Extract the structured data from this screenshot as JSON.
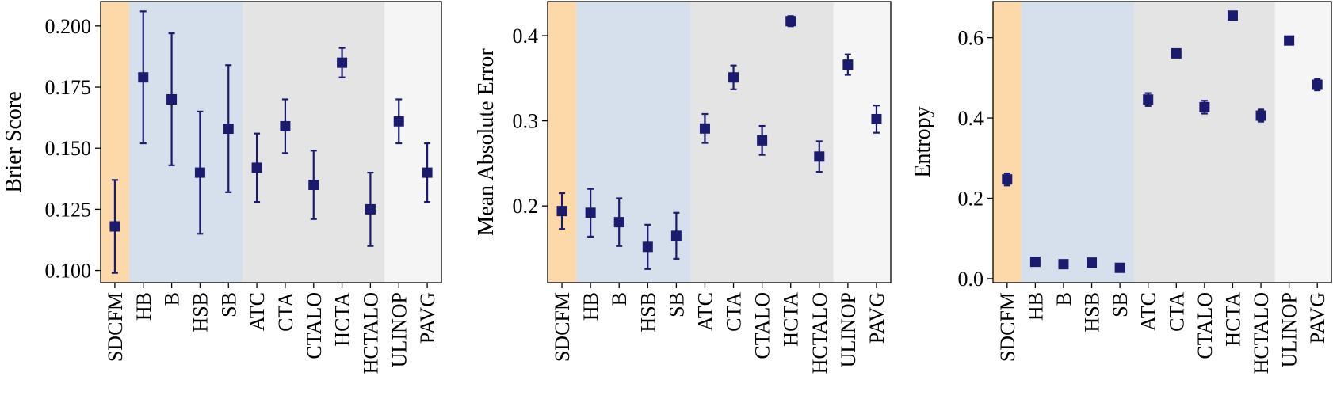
{
  "colors": {
    "marker": "#1a1a6e",
    "bands": [
      "#fdd8a8",
      "#d6e0ec",
      "#e4e4e4",
      "#f5f5f5"
    ],
    "axis": "#000000"
  },
  "chart_data": [
    {
      "type": "scatter",
      "ylabel": "Brier Score",
      "categories": [
        "SDCFM",
        "HB",
        "B",
        "HSB",
        "SB",
        "ATC",
        "CTA",
        "CTALO",
        "HCTA",
        "HCTALO",
        "ULINOP",
        "PAVG"
      ],
      "values": [
        0.118,
        0.179,
        0.17,
        0.14,
        0.158,
        0.142,
        0.159,
        0.135,
        0.185,
        0.125,
        0.161,
        0.14
      ],
      "error": [
        0.019,
        0.027,
        0.027,
        0.025,
        0.026,
        0.014,
        0.011,
        0.014,
        0.006,
        0.015,
        0.009,
        0.012
      ],
      "ylim": [
        0.095,
        0.21
      ],
      "yticks": [
        0.1,
        0.125,
        0.15,
        0.175,
        0.2
      ],
      "ytick_labels": [
        "0.100",
        "0.125",
        "0.150",
        "0.175",
        "0.200"
      ],
      "bands": [
        {
          "from": 0,
          "to": 0
        },
        {
          "from": 1,
          "to": 4
        },
        {
          "from": 5,
          "to": 9
        },
        {
          "from": 10,
          "to": 11
        }
      ]
    },
    {
      "type": "scatter",
      "ylabel": "Mean Absolute Error",
      "categories": [
        "SDCFM",
        "HB",
        "B",
        "HSB",
        "SB",
        "ATC",
        "CTA",
        "CTALO",
        "HCTA",
        "HCTALO",
        "ULINOP",
        "PAVG"
      ],
      "values": [
        0.194,
        0.192,
        0.181,
        0.152,
        0.165,
        0.291,
        0.351,
        0.277,
        0.417,
        0.258,
        0.366,
        0.302
      ],
      "error": [
        0.021,
        0.028,
        0.028,
        0.026,
        0.027,
        0.017,
        0.014,
        0.017,
        0.006,
        0.018,
        0.012,
        0.016
      ],
      "ylim": [
        0.11,
        0.44
      ],
      "yticks": [
        0.2,
        0.3,
        0.4
      ],
      "ytick_labels": [
        "0.2",
        "0.3",
        "0.4"
      ],
      "bands": [
        {
          "from": 0,
          "to": 0
        },
        {
          "from": 1,
          "to": 4
        },
        {
          "from": 5,
          "to": 9
        },
        {
          "from": 10,
          "to": 11
        }
      ]
    },
    {
      "type": "scatter",
      "ylabel": "Entropy",
      "categories": [
        "SDCFM",
        "HB",
        "B",
        "HSB",
        "SB",
        "ATC",
        "CTA",
        "CTALO",
        "HCTA",
        "HCTALO",
        "ULINOP",
        "PAVG"
      ],
      "values": [
        0.247,
        0.042,
        0.036,
        0.04,
        0.027,
        0.446,
        0.561,
        0.427,
        0.655,
        0.406,
        0.593,
        0.483
      ],
      "error": [
        0.015,
        0.004,
        0.004,
        0.004,
        0.004,
        0.016,
        0.009,
        0.016,
        0.004,
        0.015,
        0.005,
        0.014
      ],
      "ylim": [
        -0.01,
        0.69
      ],
      "yticks": [
        0.0,
        0.2,
        0.4,
        0.6
      ],
      "ytick_labels": [
        "0.0",
        "0.2",
        "0.4",
        "0.6"
      ],
      "bands": [
        {
          "from": 0,
          "to": 0
        },
        {
          "from": 1,
          "to": 4
        },
        {
          "from": 5,
          "to": 9
        },
        {
          "from": 10,
          "to": 11
        }
      ]
    }
  ]
}
